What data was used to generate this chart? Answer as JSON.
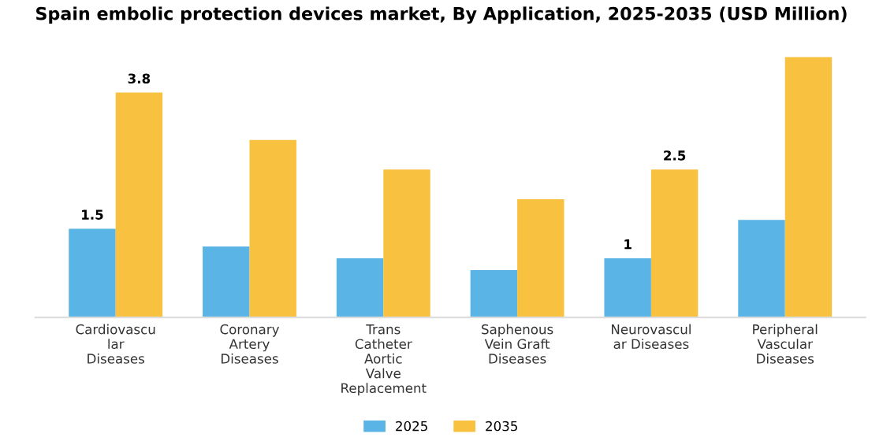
{
  "chart_data": {
    "type": "bar",
    "title": "Spain embolic protection devices market, By Application, 2025-2035 (USD Million)",
    "categories": [
      "Cardiovascular Diseases",
      "Coronary Artery Diseases",
      "Trans Catheter Aortic Valve Replacement",
      "Saphenous Vein Graft Diseases",
      "Neurovascular Diseases",
      "Peripheral Vascular Diseases"
    ],
    "series": [
      {
        "name": "2025",
        "color": "#5ab4e5",
        "values": [
          1.5,
          1.2,
          1.0,
          0.8,
          1.0,
          1.65
        ],
        "value_labels": [
          "1.5",
          null,
          null,
          null,
          "1",
          null
        ]
      },
      {
        "name": "2035",
        "color": "#f8c140",
        "values": [
          3.8,
          3.0,
          2.5,
          2.0,
          2.5,
          4.4
        ],
        "value_labels": [
          "3.8",
          null,
          null,
          null,
          "2.5",
          null
        ]
      }
    ],
    "legend": "bottom"
  }
}
